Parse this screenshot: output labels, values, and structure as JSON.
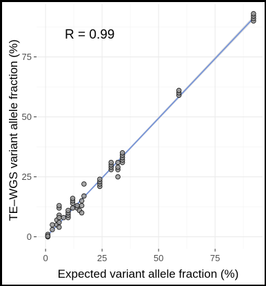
{
  "chart_data": {
    "type": "scatter",
    "title": "",
    "xlabel": "Expected variant allele fraction (%)",
    "ylabel": "TE–WGS variant allele fraction (%)",
    "annotation": "R = 0.99",
    "xlim": [
      -4,
      96
    ],
    "ylim": [
      -5,
      97
    ],
    "xticks": [
      0,
      25,
      50,
      75
    ],
    "yticks": [
      0,
      25,
      50,
      75
    ],
    "xtick_labels": [
      "0",
      "25",
      "50",
      "75"
    ],
    "ytick_labels": [
      "0",
      "25",
      "50",
      "75"
    ],
    "grid": true,
    "legend": "none",
    "fit_line": {
      "x": [
        0,
        92
      ],
      "y": [
        -0.3,
        91.2
      ],
      "color": "#6f8fd9",
      "band_color": "#cccccc"
    },
    "point_color": "#999999",
    "point_edge_color": "#1a1a1a",
    "series": [
      {
        "points": [
          [
            1,
            0
          ],
          [
            1,
            0.5
          ],
          [
            1,
            1
          ],
          [
            1,
            0.2
          ],
          [
            3,
            3
          ],
          [
            3,
            5
          ],
          [
            5,
            5
          ],
          [
            5,
            7
          ],
          [
            6,
            12
          ],
          [
            6,
            13
          ],
          [
            6,
            9
          ],
          [
            6,
            4
          ],
          [
            6,
            6
          ],
          [
            6,
            8
          ],
          [
            8,
            8
          ],
          [
            10,
            8
          ],
          [
            10,
            9
          ],
          [
            10,
            10
          ],
          [
            10,
            11
          ],
          [
            12,
            12
          ],
          [
            12,
            14
          ],
          [
            12,
            15
          ],
          [
            12,
            16
          ],
          [
            14,
            12
          ],
          [
            14,
            13
          ],
          [
            15,
            11
          ],
          [
            16,
            10
          ],
          [
            16,
            13
          ],
          [
            16,
            15
          ],
          [
            17,
            17
          ],
          [
            17,
            22
          ],
          [
            24,
            21
          ],
          [
            24,
            22
          ],
          [
            24,
            23
          ],
          [
            24,
            24
          ],
          [
            29,
            28
          ],
          [
            29,
            29
          ],
          [
            29,
            30
          ],
          [
            29,
            31
          ],
          [
            32,
            25
          ],
          [
            32,
            28
          ],
          [
            32,
            29
          ],
          [
            32,
            31
          ],
          [
            34,
            31
          ],
          [
            34,
            32
          ],
          [
            34,
            33
          ],
          [
            34,
            34
          ],
          [
            34,
            35
          ],
          [
            59,
            59
          ],
          [
            59,
            60
          ],
          [
            59,
            61
          ],
          [
            92,
            90
          ],
          [
            92,
            91
          ],
          [
            92,
            92
          ],
          [
            92,
            93
          ]
        ]
      }
    ]
  }
}
